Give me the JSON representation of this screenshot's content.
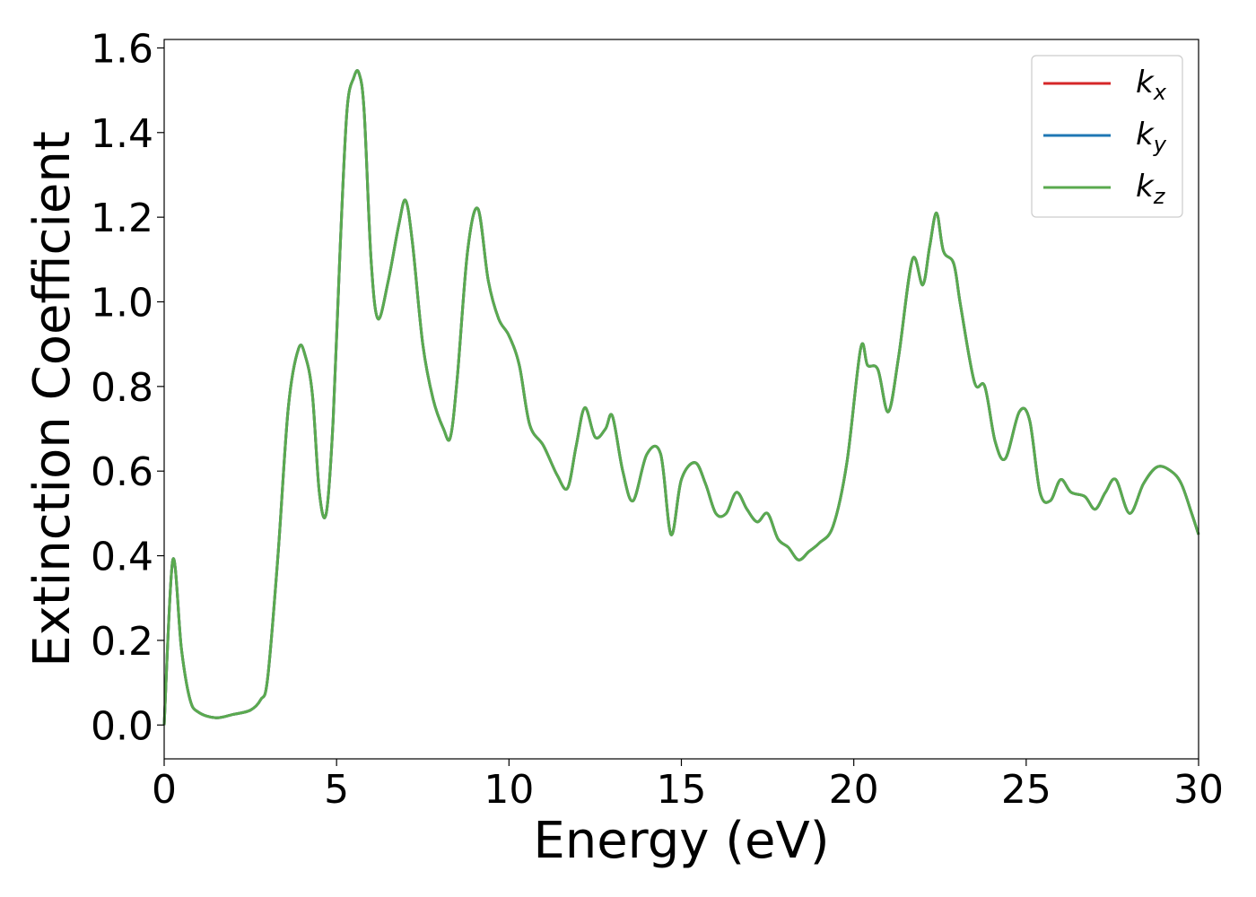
{
  "chart_data": {
    "type": "line",
    "title": "",
    "xlabel": "Energy (eV)",
    "ylabel": "Extinction Coefficient",
    "xlim": [
      0,
      30
    ],
    "ylim": [
      -0.08,
      1.62
    ],
    "xticks": [
      0,
      5,
      10,
      15,
      20,
      25,
      30
    ],
    "xtick_labels": [
      "0",
      "5",
      "10",
      "15",
      "20",
      "25",
      "30"
    ],
    "yticks": [
      0.0,
      0.2,
      0.4,
      0.6,
      0.8,
      1.0,
      1.2,
      1.4,
      1.6
    ],
    "ytick_labels": [
      "0.0",
      "0.2",
      "0.4",
      "0.6",
      "0.8",
      "1.0",
      "1.2",
      "1.4",
      "1.6"
    ],
    "grid": false,
    "legend_position": "top-right",
    "x": [
      0,
      0.25,
      0.5,
      0.75,
      1.0,
      1.5,
      2.0,
      2.5,
      2.8,
      3.0,
      3.3,
      3.6,
      3.9,
      4.1,
      4.3,
      4.5,
      4.7,
      4.9,
      5.1,
      5.3,
      5.5,
      5.65,
      5.8,
      6.0,
      6.2,
      6.5,
      6.8,
      7.0,
      7.2,
      7.5,
      7.8,
      8.1,
      8.3,
      8.5,
      8.8,
      9.1,
      9.4,
      9.7,
      10.0,
      10.3,
      10.6,
      11.0,
      11.4,
      11.7,
      11.95,
      12.2,
      12.5,
      12.8,
      13.0,
      13.3,
      13.6,
      14.0,
      14.4,
      14.7,
      15.0,
      15.4,
      15.7,
      16.0,
      16.3,
      16.6,
      16.9,
      17.2,
      17.5,
      17.8,
      18.1,
      18.4,
      18.7,
      19.0,
      19.4,
      19.8,
      20.2,
      20.4,
      20.7,
      21.0,
      21.3,
      21.7,
      22.0,
      22.2,
      22.4,
      22.6,
      22.9,
      23.1,
      23.5,
      23.8,
      24.1,
      24.4,
      24.8,
      25.1,
      25.4,
      25.7,
      26.0,
      26.3,
      26.7,
      27.0,
      27.3,
      27.6,
      28.0,
      28.4,
      28.8,
      29.2,
      29.5,
      29.8,
      30.0
    ],
    "series": [
      {
        "name": "k_x",
        "color": "#d62728",
        "values": [
          0.0,
          0.39,
          0.18,
          0.06,
          0.03,
          0.017,
          0.025,
          0.035,
          0.06,
          0.11,
          0.4,
          0.75,
          0.89,
          0.87,
          0.78,
          0.55,
          0.5,
          0.72,
          1.12,
          1.45,
          1.53,
          1.54,
          1.45,
          1.1,
          0.96,
          1.05,
          1.18,
          1.24,
          1.14,
          0.9,
          0.77,
          0.7,
          0.68,
          0.82,
          1.12,
          1.22,
          1.05,
          0.96,
          0.92,
          0.85,
          0.71,
          0.66,
          0.59,
          0.56,
          0.66,
          0.75,
          0.68,
          0.7,
          0.73,
          0.6,
          0.53,
          0.64,
          0.64,
          0.45,
          0.58,
          0.62,
          0.57,
          0.5,
          0.5,
          0.55,
          0.51,
          0.48,
          0.5,
          0.44,
          0.42,
          0.39,
          0.41,
          0.43,
          0.47,
          0.62,
          0.89,
          0.85,
          0.84,
          0.74,
          0.87,
          1.1,
          1.04,
          1.13,
          1.21,
          1.12,
          1.09,
          0.99,
          0.81,
          0.8,
          0.67,
          0.63,
          0.74,
          0.72,
          0.55,
          0.53,
          0.58,
          0.55,
          0.54,
          0.51,
          0.55,
          0.58,
          0.5,
          0.57,
          0.61,
          0.6,
          0.57,
          0.5,
          0.45
        ]
      },
      {
        "name": "k_y",
        "color": "#1f77b4",
        "values": [
          0.0,
          0.39,
          0.18,
          0.06,
          0.03,
          0.017,
          0.025,
          0.035,
          0.06,
          0.11,
          0.4,
          0.75,
          0.89,
          0.87,
          0.78,
          0.55,
          0.5,
          0.72,
          1.12,
          1.45,
          1.53,
          1.54,
          1.45,
          1.1,
          0.96,
          1.05,
          1.18,
          1.24,
          1.14,
          0.9,
          0.77,
          0.7,
          0.68,
          0.82,
          1.12,
          1.22,
          1.05,
          0.96,
          0.92,
          0.85,
          0.71,
          0.66,
          0.59,
          0.56,
          0.66,
          0.75,
          0.68,
          0.7,
          0.73,
          0.6,
          0.53,
          0.64,
          0.64,
          0.45,
          0.58,
          0.62,
          0.57,
          0.5,
          0.5,
          0.55,
          0.51,
          0.48,
          0.5,
          0.44,
          0.42,
          0.39,
          0.41,
          0.43,
          0.47,
          0.62,
          0.89,
          0.85,
          0.84,
          0.74,
          0.87,
          1.1,
          1.04,
          1.13,
          1.21,
          1.12,
          1.09,
          0.99,
          0.81,
          0.8,
          0.67,
          0.63,
          0.74,
          0.72,
          0.55,
          0.53,
          0.58,
          0.55,
          0.54,
          0.51,
          0.55,
          0.58,
          0.5,
          0.57,
          0.61,
          0.6,
          0.57,
          0.5,
          0.45
        ]
      },
      {
        "name": "k_z",
        "color": "#5aaa4f",
        "values": [
          0.0,
          0.39,
          0.18,
          0.06,
          0.03,
          0.017,
          0.025,
          0.035,
          0.06,
          0.11,
          0.4,
          0.75,
          0.89,
          0.87,
          0.78,
          0.55,
          0.5,
          0.72,
          1.12,
          1.45,
          1.53,
          1.54,
          1.45,
          1.1,
          0.96,
          1.05,
          1.18,
          1.24,
          1.14,
          0.9,
          0.77,
          0.7,
          0.68,
          0.82,
          1.12,
          1.22,
          1.05,
          0.96,
          0.92,
          0.85,
          0.71,
          0.66,
          0.59,
          0.56,
          0.66,
          0.75,
          0.68,
          0.7,
          0.73,
          0.6,
          0.53,
          0.64,
          0.64,
          0.45,
          0.58,
          0.62,
          0.57,
          0.5,
          0.5,
          0.55,
          0.51,
          0.48,
          0.5,
          0.44,
          0.42,
          0.39,
          0.41,
          0.43,
          0.47,
          0.62,
          0.89,
          0.85,
          0.84,
          0.74,
          0.87,
          1.1,
          1.04,
          1.13,
          1.21,
          1.12,
          1.09,
          0.99,
          0.81,
          0.8,
          0.67,
          0.63,
          0.74,
          0.72,
          0.55,
          0.53,
          0.58,
          0.55,
          0.54,
          0.51,
          0.55,
          0.58,
          0.5,
          0.57,
          0.61,
          0.6,
          0.57,
          0.5,
          0.45
        ]
      }
    ],
    "legend": [
      {
        "base": "k",
        "sub": "x",
        "color": "#d62728"
      },
      {
        "base": "k",
        "sub": "y",
        "color": "#1f77b4"
      },
      {
        "base": "k",
        "sub": "z",
        "color": "#5aaa4f"
      }
    ]
  }
}
